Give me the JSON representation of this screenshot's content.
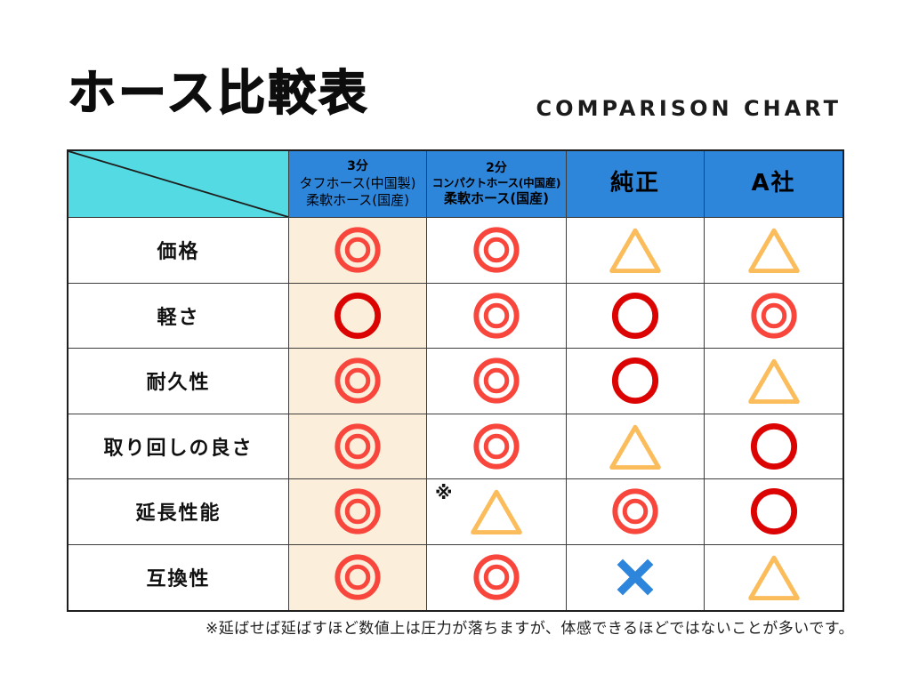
{
  "page": {
    "title": "ホース比較表",
    "subtitle": "COMPARISON CHART",
    "footnote": "※延ばせば延ばすほど数値上は圧力が落ちますが、体感できるほどではないことが多いです。"
  },
  "table": {
    "columns": [
      {
        "id": "criteria",
        "type": "diagonal",
        "lines": []
      },
      {
        "id": "tough-hose",
        "lines": [
          "3分",
          "タフホース(中国製)",
          "柔軟ホース(国産)"
        ],
        "bold": false,
        "highlight": true
      },
      {
        "id": "compact-hose",
        "lines": [
          "2分",
          "コンパクトホース(中国産)",
          "柔軟ホース(国産)"
        ],
        "bold": true
      },
      {
        "id": "genuine",
        "lines": [
          "純正"
        ],
        "large": true
      },
      {
        "id": "company-a",
        "lines": [
          "A社"
        ],
        "large": true
      }
    ],
    "rows": [
      {
        "label": "価格",
        "cells": [
          {
            "symbol": "double-circle"
          },
          {
            "symbol": "double-circle"
          },
          {
            "symbol": "triangle"
          },
          {
            "symbol": "triangle"
          }
        ]
      },
      {
        "label": "軽さ",
        "cells": [
          {
            "symbol": "circle"
          },
          {
            "symbol": "double-circle"
          },
          {
            "symbol": "circle"
          },
          {
            "symbol": "double-circle"
          }
        ]
      },
      {
        "label": "耐久性",
        "cells": [
          {
            "symbol": "double-circle"
          },
          {
            "symbol": "double-circle"
          },
          {
            "symbol": "circle"
          },
          {
            "symbol": "triangle"
          }
        ]
      },
      {
        "label": "取り回しの良さ",
        "cells": [
          {
            "symbol": "double-circle"
          },
          {
            "symbol": "double-circle"
          },
          {
            "symbol": "triangle"
          },
          {
            "symbol": "circle"
          }
        ]
      },
      {
        "label": "延長性能",
        "cells": [
          {
            "symbol": "double-circle"
          },
          {
            "symbol": "triangle",
            "note": "※"
          },
          {
            "symbol": "double-circle"
          },
          {
            "symbol": "circle"
          }
        ]
      },
      {
        "label": "互換性",
        "cells": [
          {
            "symbol": "double-circle"
          },
          {
            "symbol": "double-circle"
          },
          {
            "symbol": "cross"
          },
          {
            "symbol": "triangle"
          }
        ]
      }
    ]
  },
  "colors": {
    "header_teal": "#54DAE2",
    "header_blue": "#2E86DB",
    "highlight_beige": "#FBEFDB",
    "symbol_double_circle": "#F8463C",
    "symbol_circle": "#DC0403",
    "symbol_triangle": "#FBBC5B",
    "symbol_cross": "#2E86DC"
  },
  "chart_data": {
    "type": "table",
    "title": "ホース比較表",
    "subtitle": "COMPARISON CHART",
    "columns": [
      "3分 タフホース(中国製) 柔軟ホース(国産)",
      "2分 コンパクトホース(中国産) 柔軟ホース(国産)",
      "純正",
      "A社"
    ],
    "rows": [
      "価格",
      "軽さ",
      "耐久性",
      "取り回しの良さ",
      "延長性能",
      "互換性"
    ],
    "values": [
      [
        "◎",
        "◎",
        "△",
        "△"
      ],
      [
        "○",
        "◎",
        "○",
        "◎"
      ],
      [
        "◎",
        "◎",
        "○",
        "△"
      ],
      [
        "◎",
        "◎",
        "△",
        "○"
      ],
      [
        "◎",
        "※△",
        "◎",
        "○"
      ],
      [
        "◎",
        "◎",
        "×",
        "△"
      ]
    ],
    "footnote": "※延ばせば延ばすほど数値上は圧力が落ちますが、体感できるほどではないことが多いです。"
  }
}
